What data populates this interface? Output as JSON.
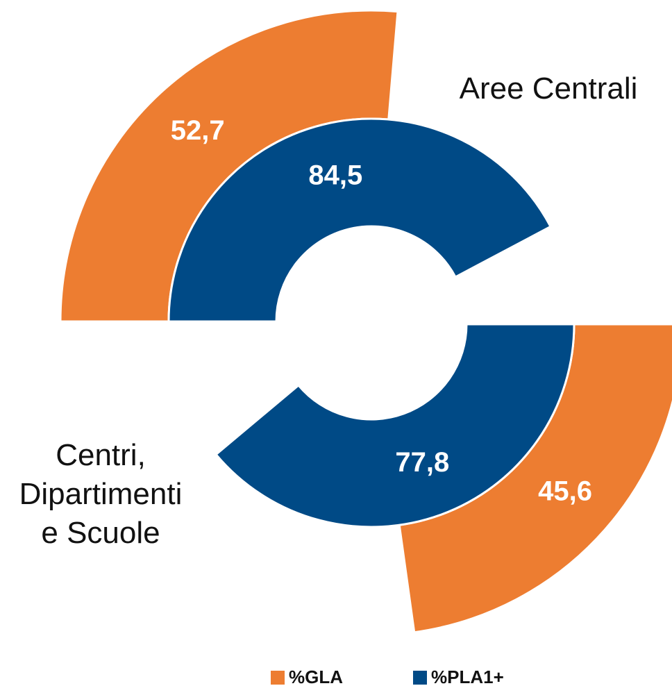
{
  "chart_data": {
    "type": "radial-bar",
    "categories": [
      "Aree Centrali",
      "Centri, Dipartimenti e Scuole"
    ],
    "ylim": [
      0,
      100
    ],
    "series": [
      {
        "name": "%GLA",
        "color": "#ED7D31",
        "values": [
          52.7,
          45.6
        ],
        "value_labels": [
          "52,7",
          "45,6"
        ]
      },
      {
        "name": "%PLA1+",
        "color": "#004A86",
        "values": [
          84.5,
          77.8
        ],
        "value_labels": [
          "84,5",
          "77,8"
        ]
      }
    ],
    "legend": "bottom"
  }
}
